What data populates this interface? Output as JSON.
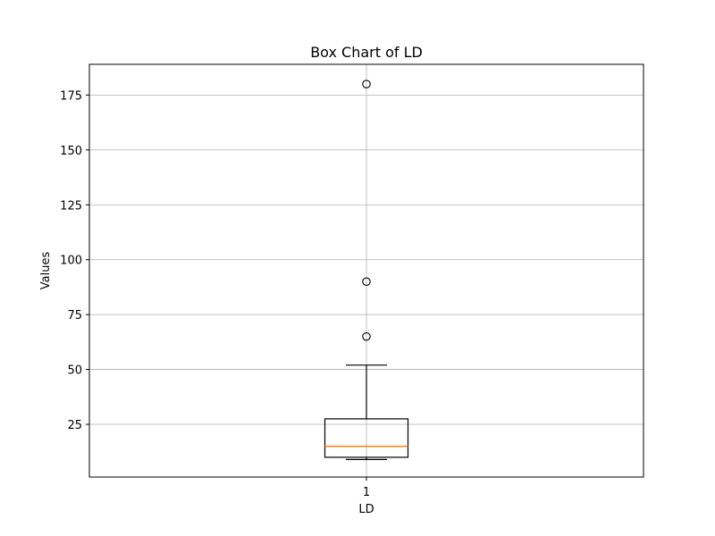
{
  "chart_data": {
    "type": "box",
    "title": "Box Chart of LD",
    "xlabel": "LD",
    "ylabel": "Values",
    "categories": [
      "1"
    ],
    "ylim": [
      1,
      189
    ],
    "yticks": [
      25,
      50,
      75,
      100,
      125,
      150,
      175
    ],
    "grid": true,
    "series": [
      {
        "whisker_low": 9,
        "q1": 10,
        "median": 15,
        "q3": 27.5,
        "whisker_high": 52,
        "outliers": [
          65,
          90,
          180
        ]
      }
    ]
  },
  "colors": {
    "median": "#ff7f0e",
    "box": "#000000",
    "grid": "#b0b0b0"
  }
}
